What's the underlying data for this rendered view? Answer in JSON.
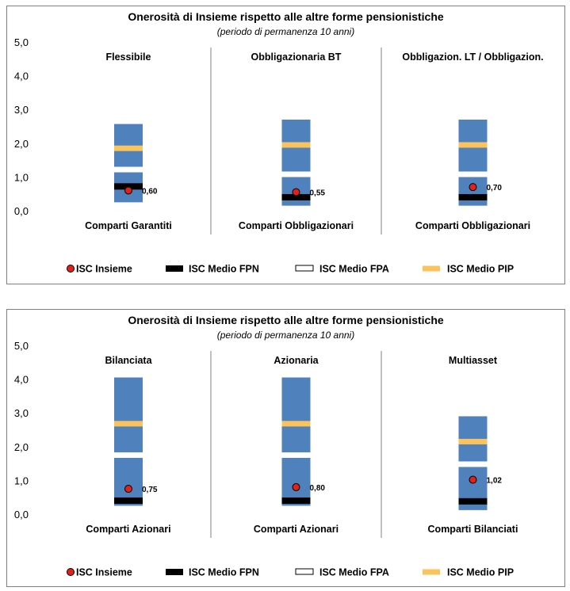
{
  "chart_data": [
    {
      "type": "range-bar",
      "title": "Onerosità di Insieme rispetto alle altre forme pensionistiche",
      "subtitle": "(periodo di permanenza 10 anni)",
      "ylim": [
        0,
        5
      ],
      "yticks": [
        "5,0",
        "4,0",
        "3,0",
        "2,0",
        "1,0",
        "0,0"
      ],
      "grid": false,
      "legend_position": "bottom",
      "legend": [
        {
          "key": "insieme",
          "label": "ISC Insieme"
        },
        {
          "key": "fpn",
          "label": "ISC Medio FPN"
        },
        {
          "key": "fpa",
          "label": "ISC Medio FPA"
        },
        {
          "key": "pip",
          "label": "ISC Medio PIP"
        }
      ],
      "groups": [
        {
          "name": "Flessibile",
          "category": "Comparti Garantiti",
          "range": [
            0.25,
            2.57
          ],
          "pip": 1.85,
          "fpa": 1.22,
          "fpn": 0.72,
          "insieme": 0.6,
          "insieme_label": "0,60"
        },
        {
          "name": "Obbligazionaria BT",
          "category": "Comparti Obbligazionari",
          "range": [
            0.15,
            2.7
          ],
          "pip": 1.95,
          "fpa": 1.08,
          "fpn": 0.4,
          "insieme": 0.55,
          "insieme_label": "0,55"
        },
        {
          "name": "Obbligazion. LT / Obbligazion.",
          "category": "Comparti Obbligazionari",
          "range": [
            0.15,
            2.7
          ],
          "pip": 1.95,
          "fpa": 1.08,
          "fpn": 0.4,
          "insieme": 0.7,
          "insieme_label": "0,70"
        }
      ]
    },
    {
      "type": "range-bar",
      "title": "Onerosità di Insieme rispetto alle altre forme pensionistiche",
      "subtitle": "(periodo di permanenza 10 anni)",
      "ylim": [
        0,
        5
      ],
      "yticks": [
        "5,0",
        "4,0",
        "3,0",
        "2,0",
        "1,0",
        "0,0"
      ],
      "grid": false,
      "legend_position": "bottom",
      "legend": [
        {
          "key": "insieme",
          "label": "ISC Insieme"
        },
        {
          "key": "fpn",
          "label": "ISC Medio FPN"
        },
        {
          "key": "fpa",
          "label": "ISC Medio FPA"
        },
        {
          "key": "pip",
          "label": "ISC Medio PIP"
        }
      ],
      "groups": [
        {
          "name": "Bilanciata",
          "category": "Comparti Azionari",
          "range": [
            0.25,
            4.05
          ],
          "pip": 2.68,
          "fpa": 1.75,
          "fpn": 0.4,
          "insieme": 0.75,
          "insieme_label": "0,75"
        },
        {
          "name": "Azionaria",
          "category": "Comparti Azionari",
          "range": [
            0.25,
            4.05
          ],
          "pip": 2.68,
          "fpa": 1.75,
          "fpn": 0.4,
          "insieme": 0.8,
          "insieme_label": "0,80"
        },
        {
          "name": "Multiasset",
          "category": "Comparti Bilanciati",
          "range": [
            0.12,
            2.9
          ],
          "pip": 2.15,
          "fpa": 1.48,
          "fpn": 0.38,
          "insieme": 1.02,
          "insieme_label": "1,02"
        }
      ]
    }
  ],
  "colors": {
    "range_bar": "#4f81bd",
    "pip": "#fcc35d",
    "fpa": "#ffffff",
    "fpn": "#000000",
    "insieme": "#e32119",
    "divider": "#808080",
    "text": "#000000"
  }
}
